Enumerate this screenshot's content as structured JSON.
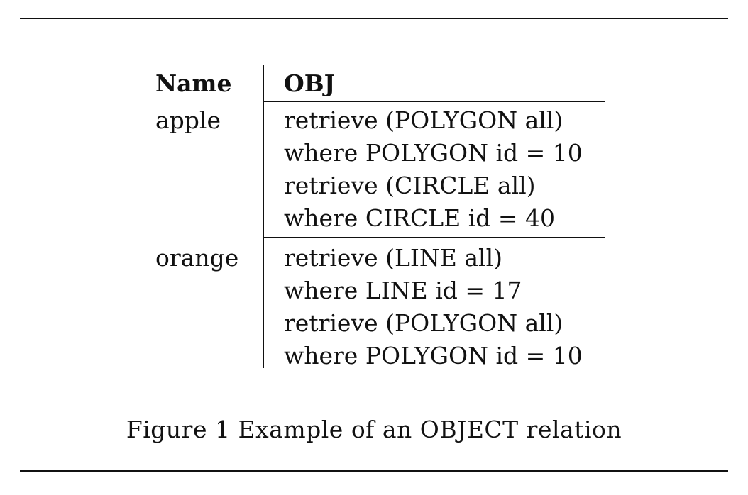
{
  "table": {
    "headers": {
      "name": "Name",
      "obj": "OBJ"
    },
    "rows": [
      {
        "name": "apple",
        "obj": [
          "retrieve (POLYGON all)",
          "where POLYGON id = 10",
          "retrieve (CIRCLE all)",
          "where CIRCLE id = 40"
        ]
      },
      {
        "name": "orange",
        "obj": [
          "retrieve (LINE all)",
          "where LINE id = 17",
          "retrieve (POLYGON all)",
          "where POLYGON id = 10"
        ]
      }
    ]
  },
  "caption": "Figure 1 Example of an OBJECT relation"
}
